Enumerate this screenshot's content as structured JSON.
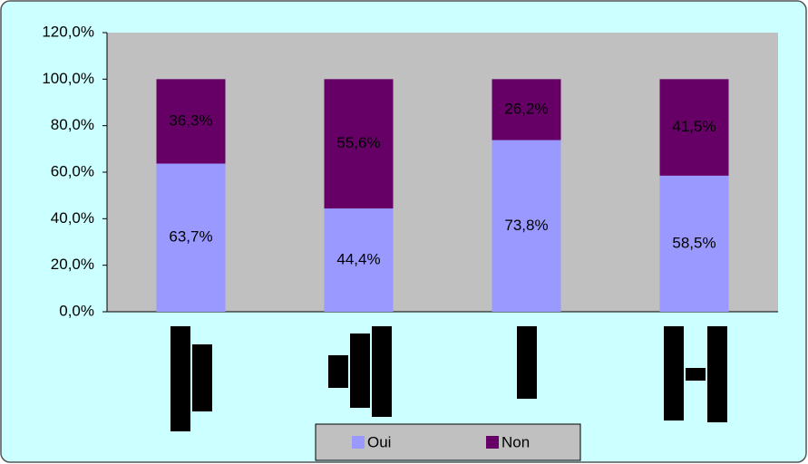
{
  "chart_data": {
    "type": "bar",
    "stacked": true,
    "categories": [
      null,
      null,
      null,
      null
    ],
    "series": [
      {
        "name": "Oui",
        "color": "#9999ff",
        "values": [
          63.7,
          44.4,
          73.8,
          58.5
        ],
        "value_labels": [
          "63,7%",
          "44,4%",
          "73,8%",
          "58,5%"
        ]
      },
      {
        "name": "Non",
        "color": "#660066",
        "values": [
          36.3,
          55.6,
          26.2,
          41.5
        ],
        "value_labels": [
          "36,3%",
          "55,6%",
          "26,2%",
          "41,5%"
        ]
      }
    ],
    "ylim": [
      0,
      120
    ],
    "yticks": [
      {
        "value": 0,
        "label": "0,0%"
      },
      {
        "value": 20,
        "label": "20,0%"
      },
      {
        "value": 40,
        "label": "40,0%"
      },
      {
        "value": 60,
        "label": "60,0%"
      },
      {
        "value": 80,
        "label": "80,0%"
      },
      {
        "value": 100,
        "label": "100,0%"
      },
      {
        "value": 120,
        "label": "120,0%"
      }
    ],
    "legend": "bottom"
  }
}
